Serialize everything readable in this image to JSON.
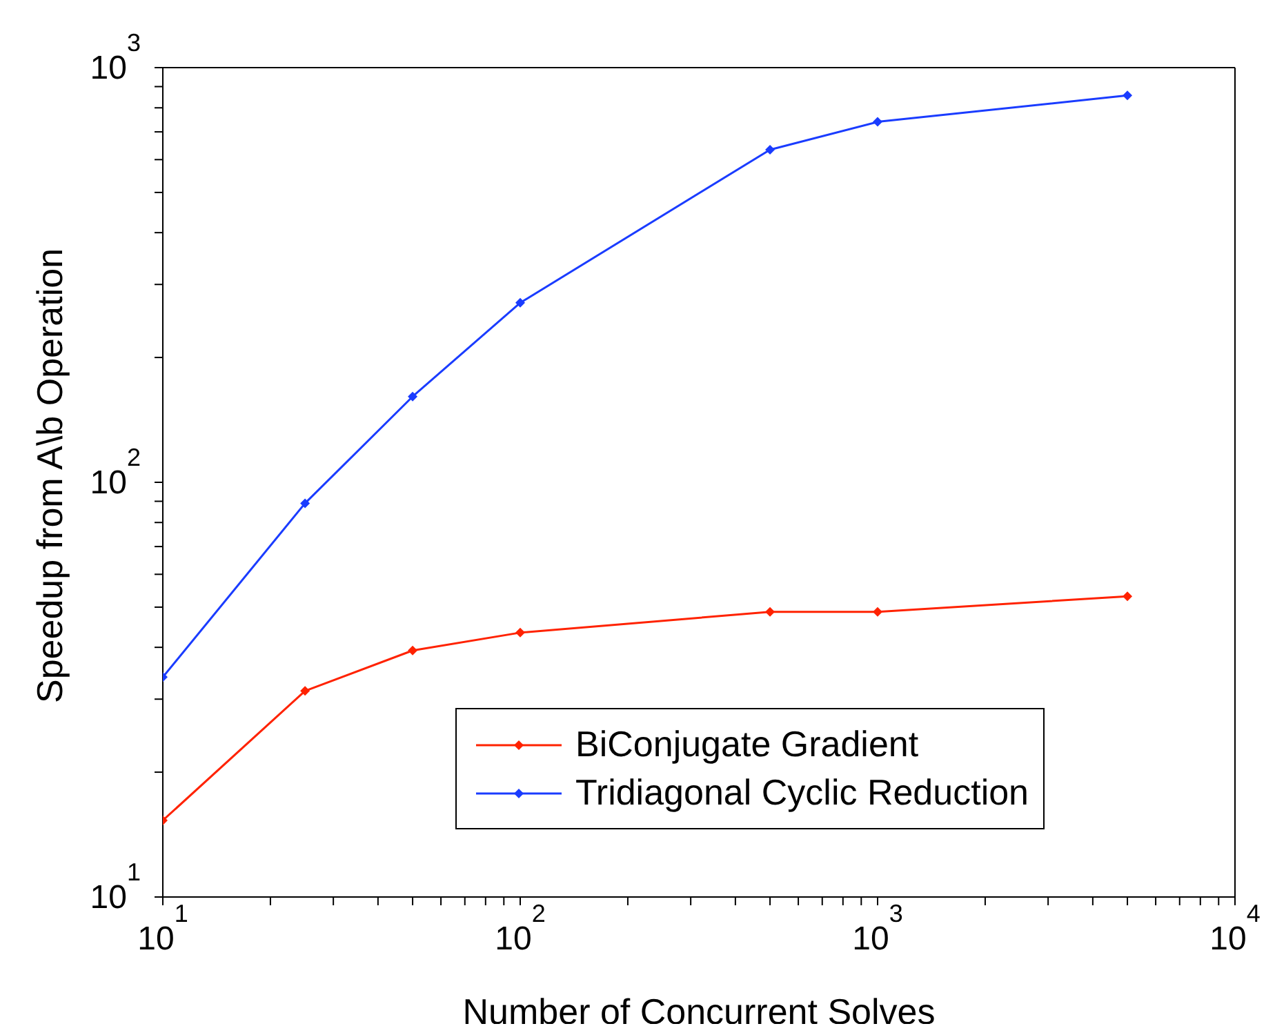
{
  "chart_data": {
    "type": "line",
    "xlabel": "Number of Concurrent Solves",
    "ylabel": "Speedup from A\\b Operation",
    "log": "xy",
    "x": [
      10,
      25,
      50,
      100,
      500,
      1000,
      5000
    ],
    "series": [
      {
        "name": "BiConjugate Gradient",
        "color": "#ff2200",
        "values": [
          15.3,
          31.4,
          39.3,
          43.4,
          48.7,
          48.7,
          53.1
        ]
      },
      {
        "name": "Tridiagonal Cyclic Reduction",
        "color": "#1a3cff",
        "values": [
          33.9,
          89,
          161,
          271,
          634,
          740,
          857
        ]
      }
    ],
    "xlim": [
      10,
      10000
    ],
    "ylim": [
      10,
      1000
    ],
    "xticks": [
      {
        "value": 10,
        "label": "10$^{1}$"
      },
      {
        "value": 20,
        "label": null
      },
      {
        "value": 30,
        "label": null
      },
      {
        "value": 40,
        "label": null
      },
      {
        "value": 50,
        "label": null
      },
      {
        "value": 60,
        "label": null
      },
      {
        "value": 70,
        "label": null
      },
      {
        "value": 80,
        "label": null
      },
      {
        "value": 90,
        "label": null
      },
      {
        "value": 100,
        "label": "10$^{2}$"
      },
      {
        "value": 200,
        "label": null
      },
      {
        "value": 300,
        "label": null
      },
      {
        "value": 400,
        "label": null
      },
      {
        "value": 500,
        "label": null
      },
      {
        "value": 600,
        "label": null
      },
      {
        "value": 700,
        "label": null
      },
      {
        "value": 800,
        "label": null
      },
      {
        "value": 900,
        "label": null
      },
      {
        "value": 1000,
        "label": "10$^{3}$"
      },
      {
        "value": 2000,
        "label": null
      },
      {
        "value": 3000,
        "label": null
      },
      {
        "value": 4000,
        "label": null
      },
      {
        "value": 5000,
        "label": null
      },
      {
        "value": 6000,
        "label": null
      },
      {
        "value": 7000,
        "label": null
      },
      {
        "value": 8000,
        "label": null
      },
      {
        "value": 9000,
        "label": null
      },
      {
        "value": 10000,
        "label": "10$^{4}$"
      }
    ],
    "yticks": [
      {
        "value": 10,
        "label": "10$^{1}$"
      },
      {
        "value": 20,
        "label": null
      },
      {
        "value": 30,
        "label": null
      },
      {
        "value": 40,
        "label": null
      },
      {
        "value": 50,
        "label": null
      },
      {
        "value": 60,
        "label": null
      },
      {
        "value": 70,
        "label": null
      },
      {
        "value": 80,
        "label": null
      },
      {
        "value": 90,
        "label": null
      },
      {
        "value": 100,
        "label": "10$^{2}$"
      },
      {
        "value": 200,
        "label": null
      },
      {
        "value": 300,
        "label": null
      },
      {
        "value": 400,
        "label": null
      },
      {
        "value": 500,
        "label": null
      },
      {
        "value": 600,
        "label": null
      },
      {
        "value": 700,
        "label": null
      },
      {
        "value": 800,
        "label": null
      },
      {
        "value": 900,
        "label": null
      },
      {
        "value": 1000,
        "label": "10$^{3}$"
      }
    ],
    "grid": false,
    "legend": "bottom right",
    "marker": "diamond",
    "line_style": "solid"
  }
}
